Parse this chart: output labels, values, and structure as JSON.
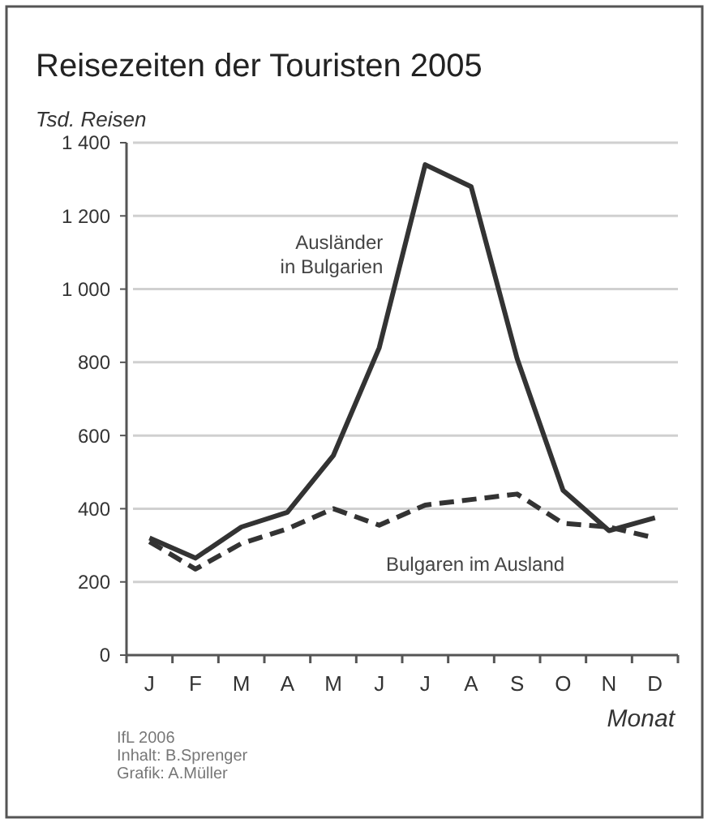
{
  "chart_data": {
    "type": "line",
    "title": "Reisezeiten der Touristen 2005",
    "ylabel": "Tsd. Reisen",
    "xlabel": "Monat",
    "categories": [
      "J",
      "F",
      "M",
      "A",
      "M",
      "J",
      "J",
      "A",
      "S",
      "O",
      "N",
      "D"
    ],
    "series": [
      {
        "name": "Ausländer in Bulgarien",
        "color": "#333333",
        "line_style": "solid",
        "values": [
          320,
          265,
          350,
          390,
          545,
          840,
          1340,
          1280,
          810,
          450,
          340,
          375
        ]
      },
      {
        "name": "Bulgaren im Ausland",
        "color": "#333333",
        "line_style": "dashed",
        "values": [
          310,
          235,
          305,
          345,
          400,
          355,
          410,
          425,
          440,
          360,
          350,
          320
        ]
      }
    ],
    "ylim": [
      0,
      1400
    ],
    "yticks": [
      0,
      200,
      400,
      600,
      800,
      {
        "value": 1000,
        "label": "1 000"
      },
      {
        "value": 1200,
        "label": "1 200"
      },
      {
        "value": 1400,
        "label": "1 400"
      }
    ],
    "grid": "y",
    "marker": "none",
    "annotations": [
      "IfL 2006",
      "Inhalt: B.Sprenger",
      "Grafik: A.Müller"
    ]
  }
}
